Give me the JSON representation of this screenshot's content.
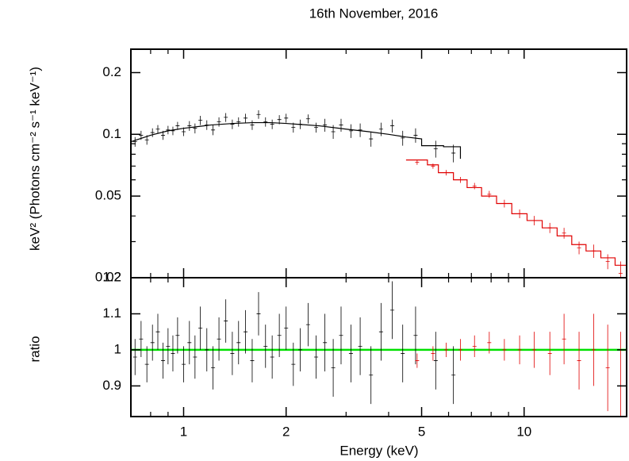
{
  "chart_data": [
    {
      "type": "errorbar",
      "title": "16th November, 2016",
      "ylabel": "keV² (Photons cm⁻² s⁻¹ keV⁻¹)",
      "log_x": true,
      "log_y": true,
      "xlim": [
        0.7,
        20
      ],
      "ylim": [
        0.02,
        0.26
      ],
      "yticks": [
        0.02,
        0.05,
        0.1,
        0.2
      ],
      "yminor": [
        0.03,
        0.04,
        0.06,
        0.07,
        0.08,
        0.09
      ],
      "series": [
        {
          "color": "#000000",
          "x": [
            0.72,
            0.75,
            0.78,
            0.81,
            0.84,
            0.87,
            0.9,
            0.93,
            0.96,
            1.0,
            1.04,
            1.08,
            1.12,
            1.17,
            1.22,
            1.27,
            1.33,
            1.39,
            1.45,
            1.52,
            1.59,
            1.66,
            1.74,
            1.82,
            1.91,
            2.0,
            2.1,
            2.2,
            2.32,
            2.45,
            2.6,
            2.75,
            2.9,
            3.1,
            3.3,
            3.55,
            3.8,
            4.1,
            4.4,
            4.8,
            5.5,
            6.2
          ],
          "values": [
            0.092,
            0.099,
            0.094,
            0.102,
            0.106,
            0.099,
            0.105,
            0.104,
            0.11,
            0.103,
            0.11,
            0.107,
            0.117,
            0.111,
            0.105,
            0.115,
            0.121,
            0.112,
            0.115,
            0.12,
            0.111,
            0.125,
            0.115,
            0.112,
            0.118,
            0.12,
            0.108,
            0.112,
            0.119,
            0.108,
            0.111,
            0.103,
            0.111,
            0.104,
            0.105,
            0.095,
            0.106,
            0.11,
            0.096,
            0.099,
            0.085,
            0.081
          ],
          "errors": [
            0.005,
            0.005,
            0.005,
            0.005,
            0.005,
            0.005,
            0.005,
            0.005,
            0.005,
            0.005,
            0.006,
            0.006,
            0.006,
            0.006,
            0.006,
            0.006,
            0.006,
            0.006,
            0.006,
            0.006,
            0.006,
            0.006,
            0.006,
            0.006,
            0.006,
            0.006,
            0.006,
            0.006,
            0.006,
            0.006,
            0.008,
            0.008,
            0.008,
            0.008,
            0.008,
            0.008,
            0.008,
            0.008,
            0.008,
            0.008,
            0.008,
            0.008
          ]
        },
        {
          "color": "#e00000",
          "x": [
            4.85,
            5.4,
            5.9,
            6.5,
            7.15,
            7.9,
            8.75,
            9.7,
            10.7,
            11.9,
            13.1,
            14.5,
            16,
            17.6,
            19.2
          ],
          "values": [
            0.073,
            0.07,
            0.065,
            0.06,
            0.056,
            0.051,
            0.046,
            0.041,
            0.038,
            0.035,
            0.033,
            0.028,
            0.027,
            0.024,
            0.021
          ],
          "errors": [
            0.002,
            0.002,
            0.002,
            0.002,
            0.002,
            0.002,
            0.002,
            0.002,
            0.002,
            0.002,
            0.002,
            0.002,
            0.002,
            0.002,
            0.003
          ]
        }
      ],
      "models": [
        {
          "color": "#000000",
          "x": [
            0.7,
            0.8,
            0.9,
            1.0,
            1.2,
            1.4,
            1.6,
            1.8,
            2.0,
            2.5,
            3.0,
            3.5,
            4.0,
            4.5,
            5.0,
            5.0,
            5.8,
            5.8,
            6.5,
            6.5
          ],
          "values": [
            0.092,
            0.099,
            0.104,
            0.107,
            0.111,
            0.113,
            0.114,
            0.114,
            0.113,
            0.11,
            0.106,
            0.103,
            0.1,
            0.097,
            0.095,
            0.088,
            0.088,
            0.087,
            0.087,
            0.076
          ]
        },
        {
          "color": "#e00000",
          "x": [
            4.5,
            5.2,
            5.2,
            5.6,
            5.6,
            6.2,
            6.2,
            6.8,
            6.8,
            7.5,
            7.5,
            8.3,
            8.3,
            9.2,
            9.2,
            10.2,
            10.2,
            11.3,
            11.3,
            12.5,
            12.5,
            13.8,
            13.8,
            15.2,
            15.2,
            16.8,
            16.8,
            18.5,
            18.5,
            20
          ],
          "values": [
            0.075,
            0.075,
            0.071,
            0.071,
            0.065,
            0.065,
            0.06,
            0.06,
            0.055,
            0.055,
            0.05,
            0.05,
            0.046,
            0.046,
            0.041,
            0.041,
            0.038,
            0.038,
            0.035,
            0.035,
            0.032,
            0.032,
            0.029,
            0.029,
            0.027,
            0.027,
            0.025,
            0.025,
            0.023,
            0.023
          ]
        }
      ]
    },
    {
      "type": "errorbar",
      "ylabel": "ratio",
      "xlabel": "Energy (keV)",
      "log_x": true,
      "log_y": false,
      "xlim": [
        0.7,
        20
      ],
      "ylim": [
        0.815,
        1.2
      ],
      "xticks": [
        1,
        2,
        5,
        10
      ],
      "xminor": [
        0.8,
        0.9,
        3,
        4,
        6,
        7,
        8,
        9,
        20
      ],
      "yticks": [
        0.9,
        1,
        1.1,
        1.2
      ],
      "hline": {
        "value": 1,
        "color": "#00e000"
      },
      "series": [
        {
          "color": "#000000",
          "x": [
            0.72,
            0.75,
            0.78,
            0.81,
            0.84,
            0.87,
            0.9,
            0.93,
            0.96,
            1.0,
            1.04,
            1.08,
            1.12,
            1.17,
            1.22,
            1.27,
            1.33,
            1.39,
            1.45,
            1.52,
            1.59,
            1.66,
            1.74,
            1.82,
            1.91,
            2.0,
            2.1,
            2.2,
            2.32,
            2.45,
            2.6,
            2.75,
            2.9,
            3.1,
            3.3,
            3.55,
            3.8,
            4.1,
            4.4,
            4.8,
            5.5,
            6.2
          ],
          "values": [
            0.98,
            1.03,
            0.96,
            1.02,
            1.05,
            0.97,
            1.01,
            0.99,
            1.04,
            0.96,
            1.02,
            0.98,
            1.06,
            1.0,
            0.95,
            1.03,
            1.08,
            0.99,
            1.02,
            1.05,
            0.97,
            1.1,
            1.01,
            0.98,
            1.04,
            1.06,
            0.96,
            1.0,
            1.07,
            0.98,
            1.02,
            0.95,
            1.04,
            0.99,
            1.01,
            0.93,
            1.05,
            1.11,
            0.99,
            1.04,
            0.97,
            0.93
          ],
          "errors": [
            0.05,
            0.05,
            0.05,
            0.05,
            0.05,
            0.05,
            0.05,
            0.05,
            0.05,
            0.05,
            0.06,
            0.06,
            0.06,
            0.06,
            0.06,
            0.06,
            0.06,
            0.06,
            0.06,
            0.06,
            0.06,
            0.06,
            0.06,
            0.06,
            0.06,
            0.06,
            0.06,
            0.06,
            0.06,
            0.06,
            0.08,
            0.08,
            0.08,
            0.08,
            0.08,
            0.08,
            0.08,
            0.08,
            0.08,
            0.08,
            0.08,
            0.08
          ]
        },
        {
          "color": "#e00000",
          "x": [
            4.85,
            5.4,
            5.9,
            6.5,
            7.15,
            7.9,
            8.75,
            9.7,
            10.7,
            11.9,
            13.1,
            14.5,
            16,
            17.6,
            19.2
          ],
          "values": [
            0.97,
            0.99,
            1.0,
            1.0,
            1.01,
            1.02,
            1.0,
            1.0,
            1.0,
            0.99,
            1.03,
            0.97,
            1.0,
            0.95,
            0.9
          ],
          "errors": [
            0.02,
            0.02,
            0.02,
            0.03,
            0.03,
            0.03,
            0.03,
            0.04,
            0.05,
            0.06,
            0.07,
            0.08,
            0.1,
            0.12,
            0.15
          ]
        }
      ]
    }
  ]
}
